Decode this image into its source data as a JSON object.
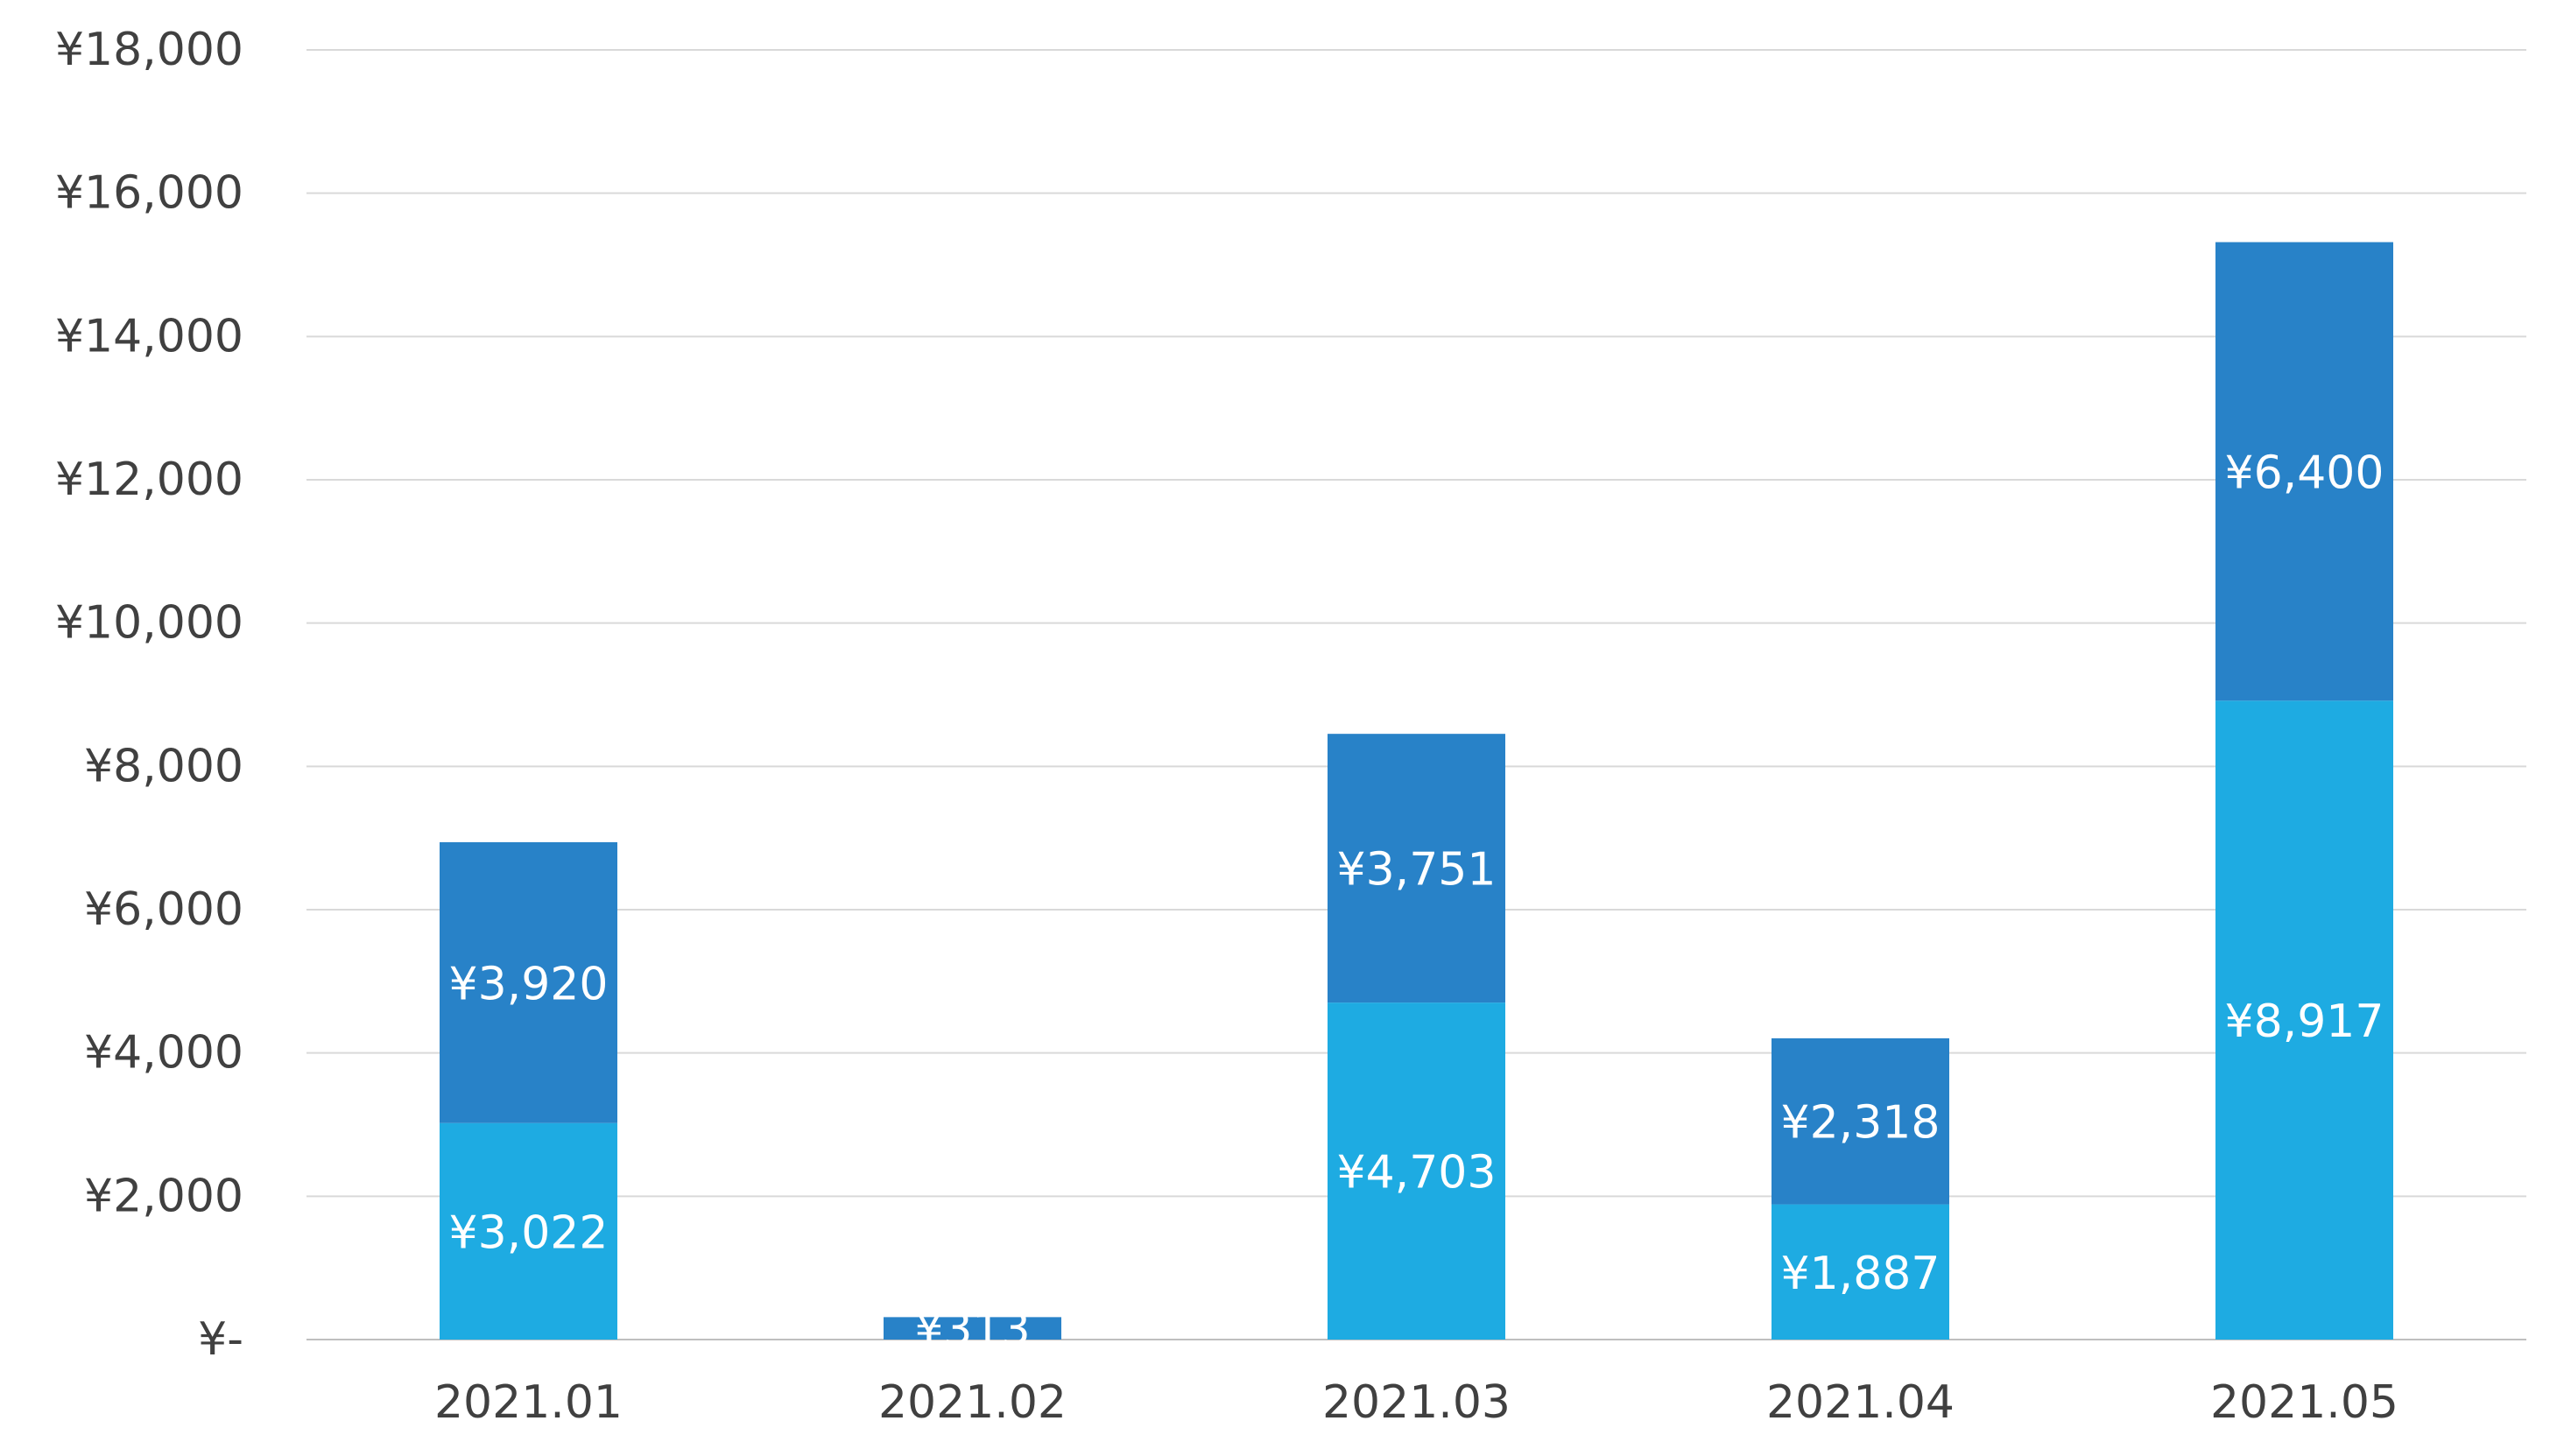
{
  "chart_data": {
    "type": "bar",
    "stacked": true,
    "categories": [
      "2021.01",
      "2021.02",
      "2021.03",
      "2021.04",
      "2021.05"
    ],
    "series": [
      {
        "color": "#1eabe2",
        "values": [
          3022,
          0,
          4703,
          1887,
          8917
        ],
        "labels": [
          "¥3,022",
          "",
          "¥4,703",
          "¥1,887",
          "¥8,917"
        ]
      },
      {
        "color": "#2882c8",
        "values": [
          3920,
          313,
          3751,
          2318,
          6400
        ],
        "labels": [
          "¥3,920",
          "¥313",
          "¥3,751",
          "¥2,318",
          "¥6,400"
        ]
      }
    ],
    "ylim": [
      0,
      18000
    ],
    "yticks": [
      0,
      2000,
      4000,
      6000,
      8000,
      10000,
      12000,
      14000,
      16000,
      18000
    ],
    "ytick_labels": [
      "¥-",
      "¥2,000",
      "¥4,000",
      "¥6,000",
      "¥8,000",
      "¥10,000",
      "¥12,000",
      "¥14,000",
      "¥16,000",
      "¥18,000"
    ],
    "grid": true,
    "legend": "none",
    "title": "",
    "xlabel": "",
    "ylabel": ""
  }
}
